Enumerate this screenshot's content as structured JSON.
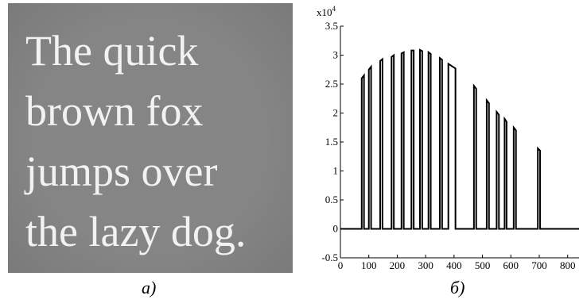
{
  "image_panel": {
    "text_lines": [
      "The quick",
      "brown fox",
      "jumps over",
      "the lazy dog."
    ],
    "caption": "a)"
  },
  "chart_data": {
    "type": "line",
    "caption": "б)",
    "y_scale_label": "x10",
    "y_scale_exponent": "4",
    "color": "#000000",
    "x": [
      0,
      75,
      75,
      83,
      83,
      100,
      100,
      108,
      108,
      140,
      140,
      148,
      148,
      180,
      180,
      188,
      188,
      215,
      215,
      223,
      223,
      250,
      250,
      258,
      258,
      280,
      280,
      288,
      288,
      310,
      310,
      318,
      318,
      350,
      350,
      358,
      358,
      380,
      380,
      405,
      405,
      470,
      470,
      478,
      478,
      515,
      515,
      523,
      523,
      550,
      550,
      558,
      558,
      578,
      578,
      585,
      585,
      610,
      610,
      618,
      618,
      695,
      695,
      703,
      703,
      840
    ],
    "values": [
      0,
      0,
      2.6,
      2.65,
      0,
      0,
      2.75,
      2.8,
      0,
      0,
      2.9,
      2.93,
      0,
      0,
      2.97,
      3.0,
      0,
      0,
      3.03,
      3.05,
      0,
      0,
      3.08,
      3.08,
      0,
      0,
      3.09,
      3.07,
      0,
      0,
      3.05,
      3.02,
      0,
      0,
      2.95,
      2.92,
      0,
      0,
      2.85,
      2.77,
      0,
      0,
      2.47,
      2.42,
      0,
      0,
      2.22,
      2.17,
      0,
      0,
      2.02,
      1.97,
      0,
      0,
      1.9,
      1.85,
      0,
      0,
      1.75,
      1.7,
      0,
      0,
      1.39,
      1.35,
      0,
      0
    ],
    "xlim": [
      0,
      840
    ],
    "xticks": [
      0,
      100,
      200,
      300,
      400,
      500,
      600,
      700,
      800
    ],
    "ylim": [
      -0.5,
      3.5
    ],
    "yticks": [
      -0.5,
      0,
      0.5,
      1,
      1.5,
      2,
      2.5,
      3,
      3.5
    ]
  }
}
